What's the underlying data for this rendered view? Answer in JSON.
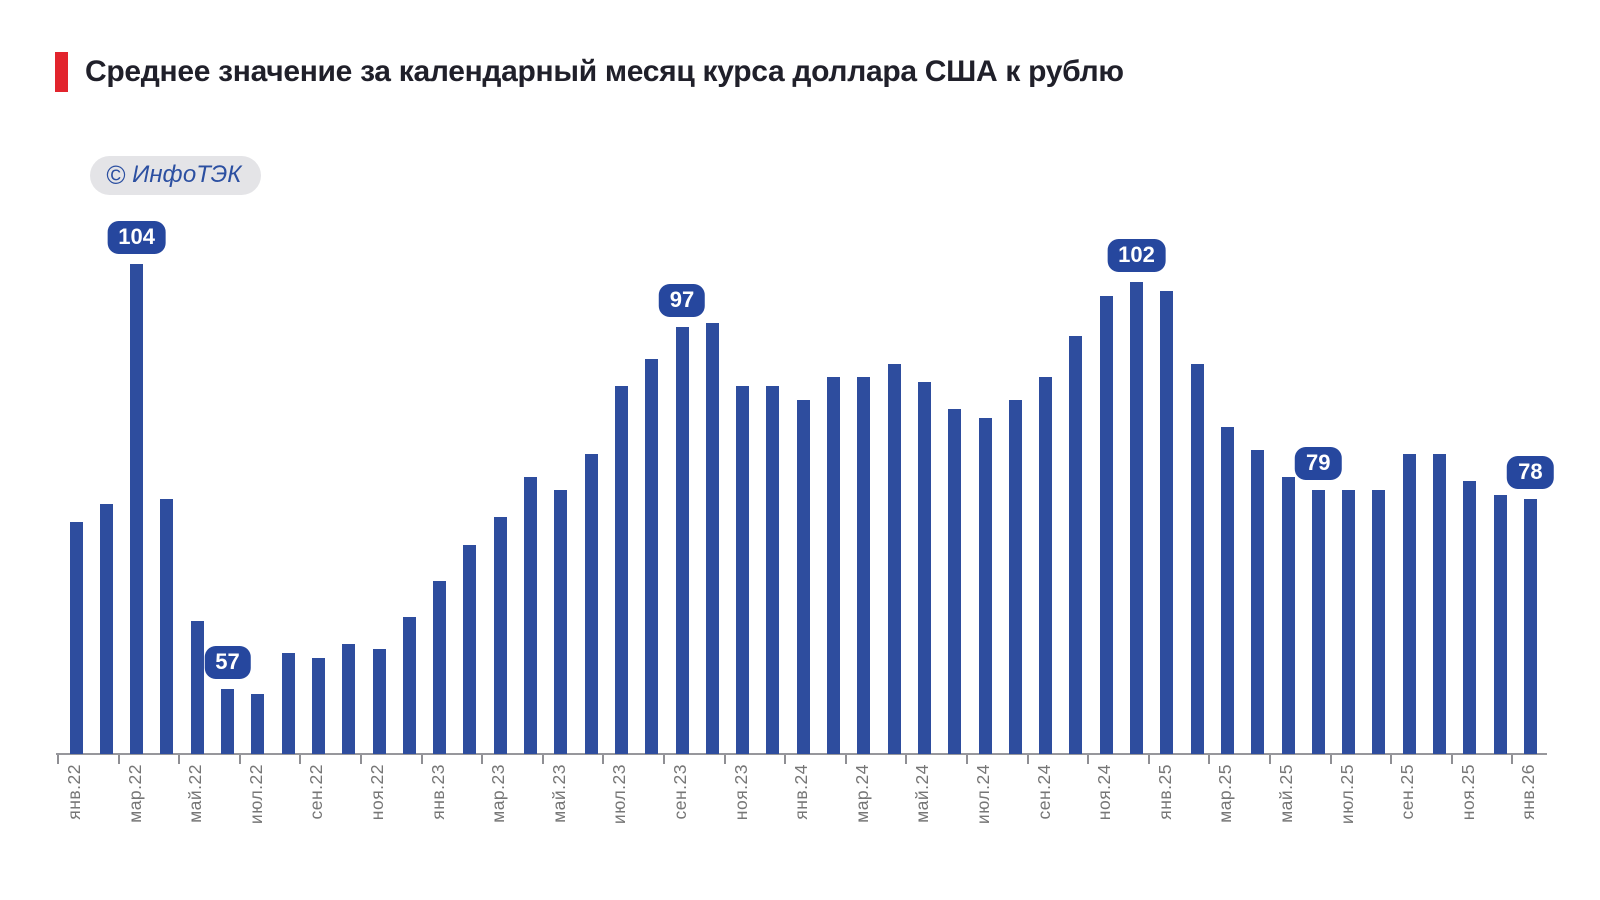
{
  "header": {
    "title": "Среднее значение за календарный месяц курса доллара США к рублю",
    "accent_color": "#E2242D",
    "title_color": "#20202A"
  },
  "watermark": {
    "symbol": "©",
    "name": "ИнфоТЭК",
    "text_color": "#2B4FA1",
    "bg_color": "#E4E4E7"
  },
  "colors": {
    "bar": "#2E4D9E",
    "callout_bg": "#26479E",
    "callout_text": "#FFFFFF",
    "axis": "#97979C",
    "tick_label": "#767676",
    "background": "#FFFFFF"
  },
  "chart_data": {
    "type": "bar",
    "title": "Среднее значение за календарный месяц курса доллара США к рублю",
    "categories": [
      "янв.22",
      "фев.22",
      "мар.22",
      "апр.22",
      "май.22",
      "июн.22",
      "июл.22",
      "авг.22",
      "сен.22",
      "окт.22",
      "ноя.22",
      "дек.22",
      "янв.23",
      "фев.23",
      "мар.23",
      "апр.23",
      "май.23",
      "июн.23",
      "июл.23",
      "авг.23",
      "сен.23",
      "окт.23",
      "ноя.23",
      "дек.23",
      "янв.24",
      "фев.24",
      "мар.24",
      "апр.24",
      "май.24",
      "июн.24",
      "июл.24",
      "авг.24",
      "сен.24",
      "окт.24",
      "ноя.24",
      "дек.24",
      "янв.25",
      "фев.25",
      "мар.25",
      "апр.25",
      "май.25",
      "июн.25",
      "июл.25",
      "авг.25",
      "сен.25",
      "окт.25",
      "ноя.25",
      "дек.25",
      "янв.26"
    ],
    "values": [
      75.5,
      77.5,
      104,
      78,
      64.5,
      57,
      56.5,
      61,
      60.5,
      62,
      61.5,
      65,
      69,
      73,
      76,
      80.5,
      79,
      83,
      90.5,
      93.5,
      97,
      97.5,
      90.5,
      90.5,
      89,
      91.5,
      91.5,
      93,
      91,
      88,
      87,
      89,
      91.5,
      96,
      100.5,
      102,
      101,
      93,
      86,
      83.5,
      80.5,
      79,
      79,
      79,
      83,
      83,
      80,
      78.5,
      78
    ],
    "callouts": [
      {
        "index": 2,
        "label": "104"
      },
      {
        "index": 5,
        "label": "57"
      },
      {
        "index": 20,
        "label": "97"
      },
      {
        "index": 35,
        "label": "102"
      },
      {
        "index": 41,
        "label": "79"
      },
      {
        "index": 48,
        "label": "78"
      }
    ],
    "x_tick_labels": [
      "янв.22",
      "мар.22",
      "май.22",
      "июл.22",
      "сен.22",
      "ноя.22",
      "янв.23",
      "мар.23",
      "май.23",
      "июл.23",
      "сен.23",
      "ноя.23",
      "янв.24",
      "мар.24",
      "май.24",
      "июл.24",
      "сен.24",
      "ноя.24",
      "янв.25",
      "мар.25",
      "май.25",
      "июл.25",
      "сен.25",
      "ноя.25",
      "янв.26"
    ],
    "x_label_every_n": 2,
    "ylim": [
      50,
      106
    ],
    "grid": false,
    "legend": null,
    "y_axis_visible": false
  }
}
